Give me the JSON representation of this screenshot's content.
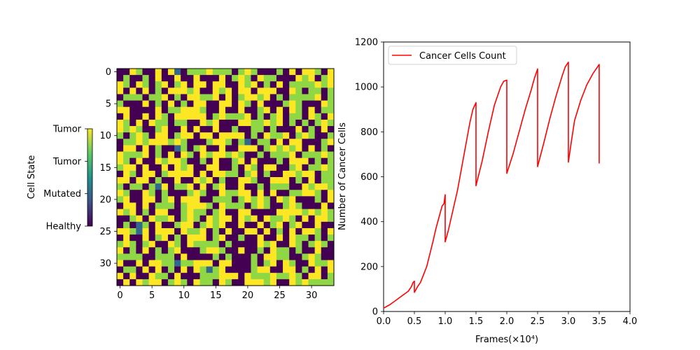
{
  "chart_data": [
    {
      "type": "heatmap",
      "rows": 34,
      "cols": 34,
      "x_ticks": [
        0,
        5,
        10,
        15,
        20,
        25,
        30
      ],
      "y_ticks": [
        0,
        5,
        10,
        15,
        20,
        25,
        30
      ],
      "colormap": "viridis",
      "colorbar": {
        "label": "Cell State",
        "tick_labels": [
          "Healthy",
          "Mutated",
          "Tumor",
          "Tumor"
        ],
        "range": [
          0,
          3
        ]
      },
      "grid_values": [
        "0032003031022232220232000203033203",
        "0200203003003000302320322000323023",
        "3203202302303303300323020302222323",
        "3030302033323003230330333003202202",
        "0222022302033223030233230202222302",
        "2000302030203300330320300023200032",
        "3300003022333200300300230303203022",
        "0300303203333302322230202302203203",
        "3203032202200323000332232302020232",
        "3232002300303003002002202000302030",
        "2023203302330330333302032230232002",
        "0223233323200023320210220303300023",
        "0330302001202300300333023232303020",
        "3222302030320323323200202223022232",
        "3203003233200203002303000203330202",
        "2330300303230033002032033002302232",
        "0320330233330303322023020033233022",
        "3303302003003230200332003330203022",
        "2022021302230302300300202220032332",
        "3200320200023200322330303002233203",
        "2300330230333002220232320323000203",
        "0330302220233320322202320023200030",
        "3230203300232202300330000333323232",
        "0023032230232032330323032232030332",
        "0201203002330232300300302302300300",
        "3321303330322302030033030203033203",
        "0300302302033302300200300303220202",
        "2320230032032222020000323003202320",
        "3020302023000233200300203220200300",
        "2222002220300002020002033220023200",
        "3003033221223330330002023032003223",
        "0220303020303212300002330033020303",
        "3030032203000222333032223223203302",
        "0303233023203220320033323003232222"
      ]
    },
    {
      "type": "line",
      "xlabel": "Frames(×10⁴)",
      "ylabel": "Number of Cancer Cells",
      "xlim": [
        0,
        4.0
      ],
      "ylim": [
        0,
        1200
      ],
      "x_ticks": [
        "0.0",
        "0.5",
        "1.0",
        "1.5",
        "2.0",
        "2.5",
        "3.0",
        "3.5",
        "4.0"
      ],
      "y_ticks": [
        "0",
        "200",
        "400",
        "600",
        "800",
        "1000",
        "1200"
      ],
      "legend_position": "top-left",
      "series": [
        {
          "name": "Cancer Cells Count",
          "color": "#ff0000",
          "x": [
            0.0,
            0.1,
            0.2,
            0.3,
            0.4,
            0.45,
            0.48,
            0.5,
            0.5,
            0.55,
            0.6,
            0.7,
            0.8,
            0.85,
            0.9,
            0.95,
            0.98,
            1.0,
            1.0,
            1.05,
            1.1,
            1.2,
            1.3,
            1.4,
            1.45,
            1.5,
            1.5,
            1.6,
            1.7,
            1.8,
            1.9,
            1.95,
            2.0,
            2.0,
            2.1,
            2.2,
            2.3,
            2.4,
            2.45,
            2.5,
            2.5,
            2.6,
            2.7,
            2.8,
            2.9,
            2.95,
            3.0,
            3.0,
            3.05,
            3.1,
            3.2,
            3.3,
            3.4,
            3.5,
            3.5
          ],
          "y": [
            15,
            30,
            50,
            70,
            90,
            110,
            130,
            135,
            85,
            110,
            130,
            200,
            310,
            370,
            420,
            470,
            480,
            520,
            310,
            360,
            420,
            540,
            690,
            840,
            900,
            930,
            560,
            670,
            800,
            920,
            1000,
            1025,
            1030,
            615,
            700,
            800,
            900,
            990,
            1040,
            1080,
            645,
            750,
            860,
            960,
            1050,
            1090,
            1110,
            665,
            760,
            850,
            940,
            1010,
            1060,
            1100,
            660
          ]
        }
      ]
    }
  ]
}
